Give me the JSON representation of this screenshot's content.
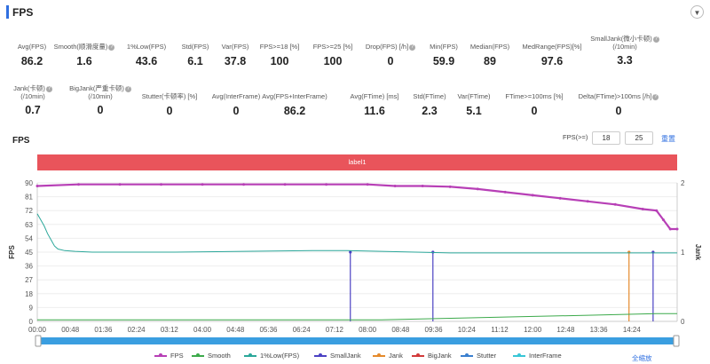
{
  "header": {
    "title": "FPS"
  },
  "stats_row1": [
    {
      "label": "Avg(FPS)",
      "value": "86.2",
      "help": false
    },
    {
      "label": "Smooth(顺滑度量)",
      "value": "1.6",
      "help": true
    },
    {
      "label": "1%Low(FPS)",
      "value": "43.6",
      "help": false
    },
    {
      "label": "Std(FPS)",
      "value": "6.1",
      "help": false
    },
    {
      "label": "Var(FPS)",
      "value": "37.8",
      "help": false
    },
    {
      "label": "FPS>=18 [%]",
      "value": "100",
      "help": false
    },
    {
      "label": "FPS>=25 [%]",
      "value": "100",
      "help": false
    },
    {
      "label": "Drop(FPS) [/h]",
      "value": "0",
      "help": true
    },
    {
      "label": "Min(FPS)",
      "value": "59.9",
      "help": false
    },
    {
      "label": "Median(FPS)",
      "value": "89",
      "help": false
    },
    {
      "label": "MedRange(FPS)[%]",
      "value": "97.6",
      "help": false
    },
    {
      "label": "SmallJank(微小卡顿)",
      "label2": "(/10min)",
      "value": "3.3",
      "help": true
    }
  ],
  "stats_row2": [
    {
      "label": "Jank(卡顿)",
      "label2": "(/10min)",
      "value": "0.7",
      "help": true
    },
    {
      "label": "BigJank(严重卡顿)",
      "label2": "(/10min)",
      "value": "0",
      "help": true
    },
    {
      "label": "Stutter(卡顿率) [%]",
      "value": "0",
      "help": false
    },
    {
      "label": "Avg(InterFrame)",
      "value": "0",
      "help": false
    },
    {
      "label": "Avg(FPS+InterFrame)",
      "value": "86.2",
      "help": false
    },
    {
      "label": "Avg(FTime) [ms]",
      "value": "11.6",
      "help": false
    },
    {
      "label": "Std(FTime)",
      "value": "2.3",
      "help": false
    },
    {
      "label": "Var(FTime)",
      "value": "5.1",
      "help": false
    },
    {
      "label": "FTime>=100ms [%]",
      "value": "0",
      "help": false
    },
    {
      "label": "Delta(FTime)>100ms [/h]",
      "value": "0",
      "help": true
    }
  ],
  "chart_section": {
    "title": "FPS",
    "fps_filter_label": "FPS(>=)",
    "threshold_1": "18",
    "threshold_2": "25",
    "reset_label": "重置",
    "label_bar": "label1",
    "reset_zoom_label": "全缩放"
  },
  "legend": [
    {
      "name": "FPS",
      "color": "#b73fb6"
    },
    {
      "name": "Smooth",
      "color": "#3caa4b"
    },
    {
      "name": "1%Low(FPS)",
      "color": "#2ba79a"
    },
    {
      "name": "SmallJank",
      "color": "#4b42c4"
    },
    {
      "name": "Jank",
      "color": "#e58a2c"
    },
    {
      "name": "BigJank",
      "color": "#d23a3a"
    },
    {
      "name": "Stutter",
      "color": "#3a7fcf"
    },
    {
      "name": "InterFrame",
      "color": "#38c6d6"
    }
  ],
  "chart_data": {
    "type": "line",
    "xlabel": "",
    "ylabel": "FPS",
    "y2label": "Jank",
    "ylim": [
      0,
      90
    ],
    "y2lim": [
      0,
      2
    ],
    "y_ticks": [
      0,
      9,
      18,
      27,
      36,
      45,
      54,
      63,
      72,
      81,
      90
    ],
    "y2_ticks": [
      0,
      1,
      2
    ],
    "x_ticks": [
      "00:00",
      "00:48",
      "01:36",
      "02:24",
      "03:12",
      "04:00",
      "04:48",
      "05:36",
      "06:24",
      "07:12",
      "08:00",
      "08:48",
      "09:36",
      "10:24",
      "11:12",
      "12:00",
      "12:48",
      "13:36",
      "14:24"
    ],
    "x_range_seconds": [
      0,
      930
    ],
    "series": [
      {
        "name": "FPS",
        "axis": "left",
        "points": [
          [
            0,
            88
          ],
          [
            60,
            89
          ],
          [
            120,
            89
          ],
          [
            180,
            89
          ],
          [
            240,
            89
          ],
          [
            300,
            89
          ],
          [
            360,
            89
          ],
          [
            420,
            89
          ],
          [
            480,
            89
          ],
          [
            520,
            88
          ],
          [
            560,
            88
          ],
          [
            600,
            87.5
          ],
          [
            640,
            86
          ],
          [
            680,
            84
          ],
          [
            720,
            82
          ],
          [
            760,
            80
          ],
          [
            800,
            78
          ],
          [
            840,
            76
          ],
          [
            880,
            73
          ],
          [
            900,
            72
          ],
          [
            910,
            66
          ],
          [
            920,
            60
          ],
          [
            930,
            60
          ]
        ]
      },
      {
        "name": "1%Low(FPS)",
        "axis": "left",
        "points": [
          [
            0,
            70
          ],
          [
            5,
            66
          ],
          [
            10,
            62
          ],
          [
            15,
            57
          ],
          [
            20,
            53
          ],
          [
            25,
            49
          ],
          [
            30,
            47
          ],
          [
            40,
            46
          ],
          [
            55,
            45.5
          ],
          [
            80,
            45
          ],
          [
            200,
            45
          ],
          [
            300,
            45.5
          ],
          [
            400,
            46
          ],
          [
            450,
            46
          ],
          [
            500,
            45.5
          ],
          [
            600,
            44.5
          ],
          [
            700,
            44.5
          ],
          [
            800,
            44.5
          ],
          [
            930,
            44.5
          ]
        ]
      },
      {
        "name": "Smooth",
        "axis": "left",
        "points": [
          [
            0,
            1
          ],
          [
            200,
            1
          ],
          [
            400,
            1
          ],
          [
            500,
            1
          ],
          [
            600,
            2
          ],
          [
            700,
            3
          ],
          [
            800,
            4
          ],
          [
            900,
            5
          ],
          [
            930,
            5
          ]
        ]
      },
      {
        "name": "SmallJank",
        "axis": "right",
        "events": [
          [
            455,
            1
          ],
          [
            575,
            1
          ],
          [
            895,
            1
          ]
        ]
      },
      {
        "name": "Jank",
        "axis": "right",
        "events": [
          [
            860,
            1
          ]
        ]
      },
      {
        "name": "BigJank",
        "axis": "right",
        "events": []
      },
      {
        "name": "Stutter",
        "axis": "right",
        "events": []
      },
      {
        "name": "InterFrame",
        "axis": "left",
        "points": []
      }
    ]
  }
}
